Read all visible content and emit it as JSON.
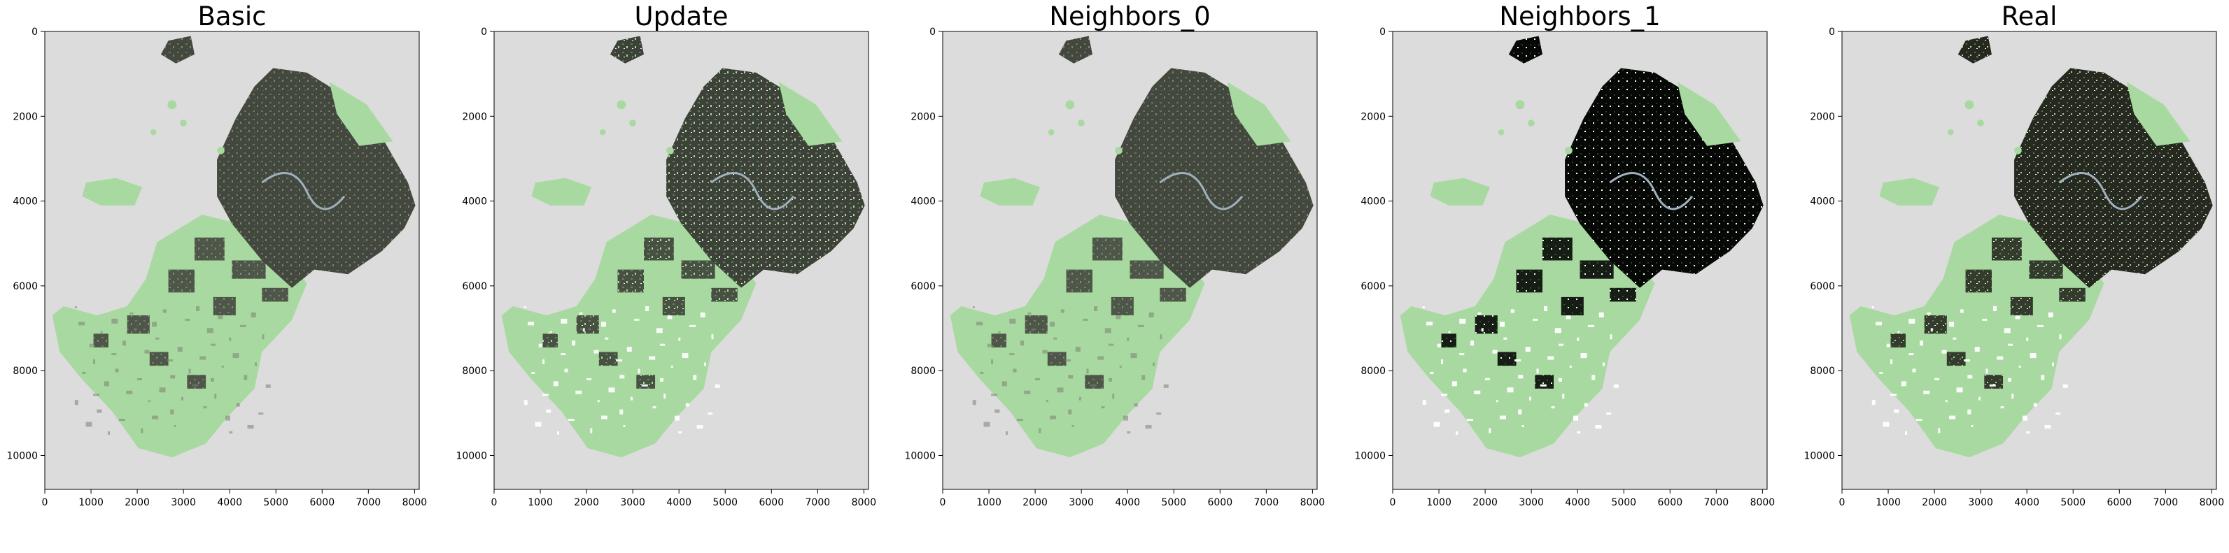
{
  "figure": {
    "panels": [
      {
        "title": "Basic",
        "style": "basic"
      },
      {
        "title": "Update",
        "style": "update"
      },
      {
        "title": "Neighbors_0",
        "style": "neighbors0"
      },
      {
        "title": "Neighbors_1",
        "style": "neighbors1"
      },
      {
        "title": "Real",
        "style": "real"
      }
    ],
    "x_ticks": [
      "0",
      "1000",
      "2000",
      "3000",
      "4000",
      "5000",
      "6000",
      "7000",
      "8000"
    ],
    "y_ticks": [
      "0",
      "2000",
      "4000",
      "6000",
      "8000",
      "10000"
    ],
    "x_range": [
      0,
      8100
    ],
    "y_range": [
      0,
      10800
    ],
    "colors": {
      "background_raster": "#dcdcdc",
      "green_zone": "#a8d9a0",
      "urban_dark": "#3b3f36",
      "urban_black": "#060806",
      "holes_white": "#ffffff",
      "river": "#9fb1bd"
    }
  }
}
